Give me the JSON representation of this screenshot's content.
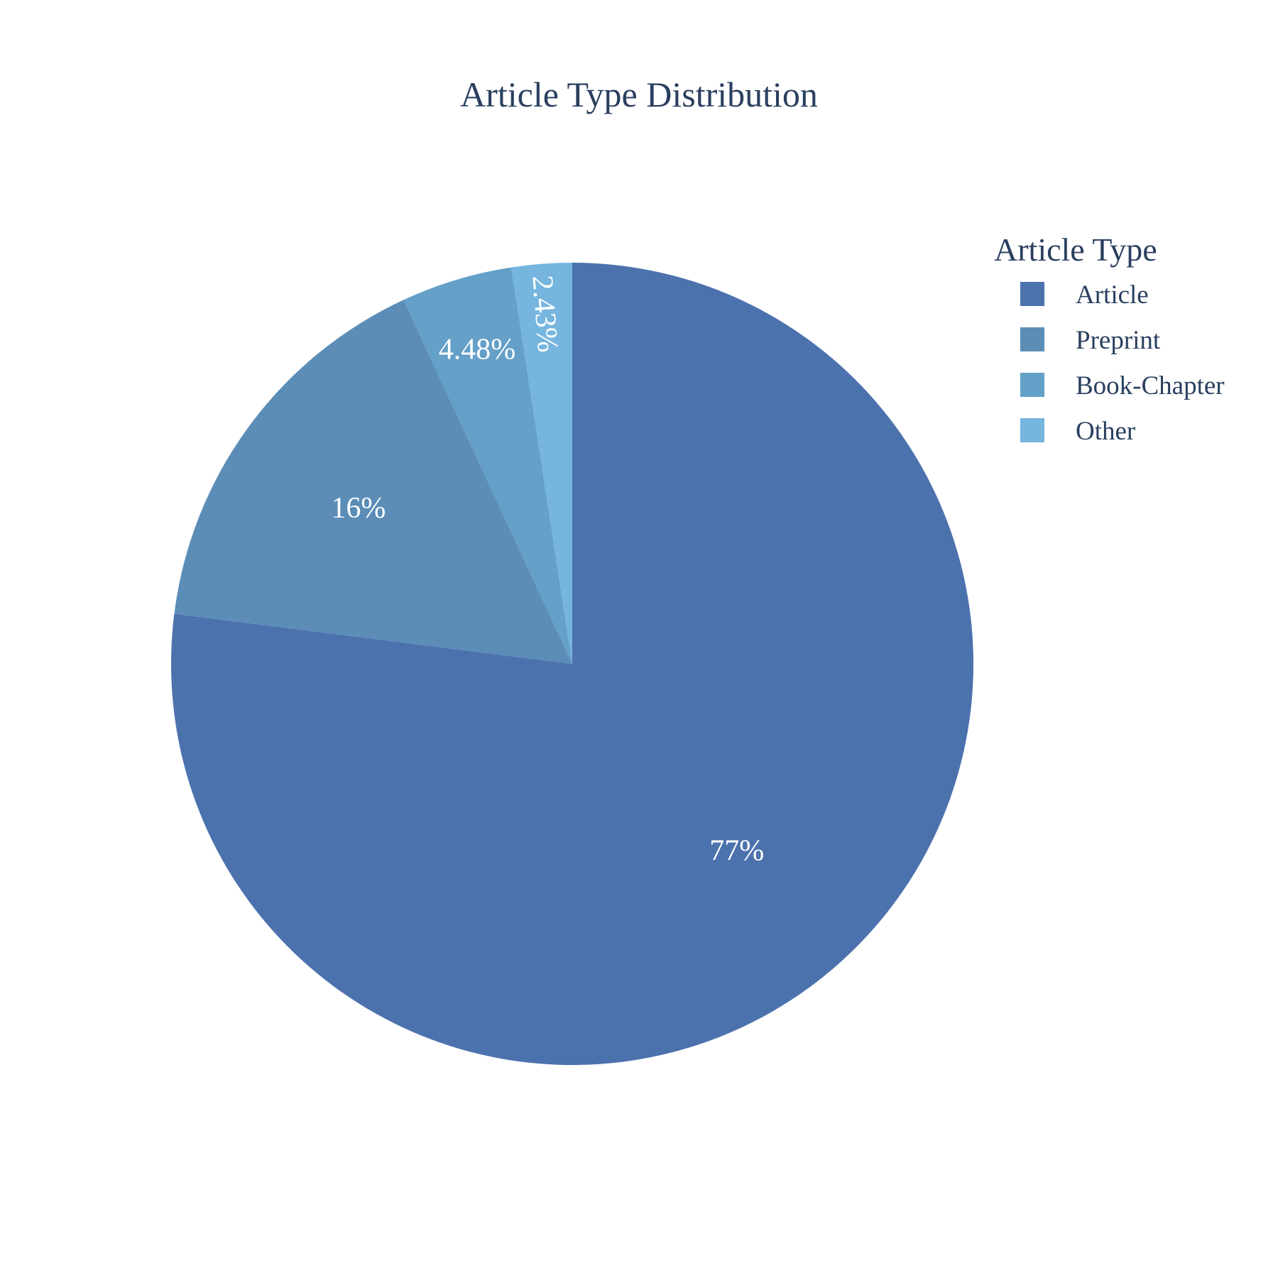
{
  "chart_data": {
    "type": "pie",
    "title": "Article Type Distribution",
    "legend": {
      "title": "Article Type",
      "placement": "top-right"
    },
    "direction": "clockwise",
    "start_angle": "12 o'clock",
    "slices": [
      {
        "label": "Article",
        "percent": 77.0,
        "display": "77%",
        "color": "#4c72ae"
      },
      {
        "label": "Preprint",
        "percent": 16.1,
        "display": "16%",
        "color": "#5b8db7"
      },
      {
        "label": "Book-Chapter",
        "percent": 4.48,
        "display": "4.48%",
        "color": "#64a0c8"
      },
      {
        "label": "Other",
        "percent": 2.43,
        "display": "2.43%",
        "color": "#75b5de"
      }
    ]
  }
}
